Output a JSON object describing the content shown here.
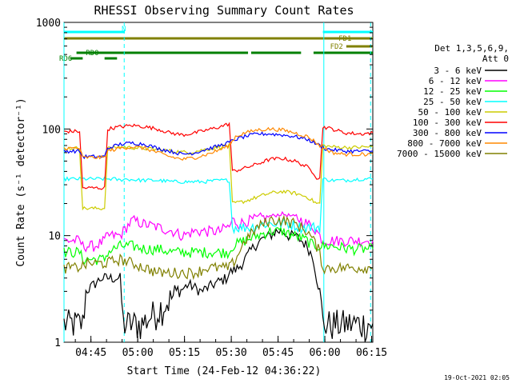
{
  "chart_data": {
    "type": "line",
    "title": "RHESSI Observing Summary Count Rates",
    "xlabel": "Start Time (24-Feb-12 04:36:22)",
    "ylabel": "Count Rate (s⁻¹ detector⁻¹)",
    "y_scale": "log",
    "ylim": [
      1,
      1000
    ],
    "xlim_minutes": [
      0,
      99
    ],
    "x_ticks": [
      {
        "label": "04:45",
        "minute": 8.63
      },
      {
        "label": "05:00",
        "minute": 23.63
      },
      {
        "label": "05:15",
        "minute": 38.63
      },
      {
        "label": "05:30",
        "minute": 53.63
      },
      {
        "label": "05:45",
        "minute": 68.63
      },
      {
        "label": "06:00",
        "minute": 83.63
      },
      {
        "label": "06:15",
        "minute": 98.63
      }
    ],
    "y_ticks": [
      {
        "label": "1",
        "value": 1
      },
      {
        "label": "10",
        "value": 10
      },
      {
        "label": "100",
        "value": 100
      },
      {
        "label": "1000",
        "value": 1000
      }
    ],
    "legend_header": [
      "Det 1,3,5,6,9,",
      "Att 0"
    ],
    "legend_position": "right",
    "grid": false,
    "series": [
      {
        "name": "3 - 6 keV",
        "color": "#000000",
        "x": [
          0,
          6,
          7,
          12,
          18,
          19,
          25,
          30,
          37,
          40,
          44,
          48,
          52,
          53,
          56,
          58,
          61,
          63,
          66,
          68,
          70,
          72,
          74,
          76,
          78,
          80,
          81,
          82,
          83,
          86,
          92,
          97,
          99
        ],
        "y": [
          1.5,
          1.5,
          3,
          4,
          4,
          1.5,
          1.5,
          2,
          3,
          3.5,
          3,
          3.5,
          4,
          4.5,
          5,
          6,
          8,
          9,
          10,
          11,
          11,
          10,
          10,
          9,
          8,
          6,
          4,
          3,
          1.5,
          1.5,
          1.5,
          1.5,
          1.5
        ]
      },
      {
        "name": "6 - 12 keV",
        "color": "#ff00ff",
        "x": [
          0,
          5,
          6,
          10,
          13,
          14,
          18,
          20,
          22,
          25,
          30,
          35,
          38,
          42,
          46,
          50,
          52,
          53,
          54,
          56,
          60,
          65,
          70,
          74,
          78,
          80,
          81,
          82,
          83,
          86,
          92,
          97,
          99
        ],
        "y": [
          9,
          9,
          8,
          8,
          9,
          10,
          10,
          12,
          14,
          13,
          12,
          11,
          10,
          11,
          11,
          11,
          12,
          12,
          14,
          13,
          14,
          15,
          16,
          15,
          13,
          12,
          11,
          10,
          9,
          9,
          9,
          9,
          9
        ]
      },
      {
        "name": "12 - 25 keV",
        "color": "#00ff00",
        "x": [
          0,
          5,
          6,
          13,
          14,
          18,
          22,
          26,
          30,
          35,
          40,
          45,
          50,
          53,
          54,
          58,
          62,
          66,
          70,
          74,
          78,
          80,
          83,
          86,
          92,
          97,
          99
        ],
        "y": [
          7,
          7,
          6,
          6,
          7,
          8,
          8,
          7.5,
          7.5,
          7,
          7,
          7,
          7,
          7,
          8,
          9,
          10,
          11,
          11,
          10,
          9,
          8,
          8,
          8,
          7.5,
          7.5,
          7.5
        ]
      },
      {
        "name": "25 - 50 keV",
        "color": "#00ffff",
        "x": [
          0,
          5,
          6,
          10,
          12,
          16,
          18,
          19,
          25,
          30,
          35,
          40,
          45,
          50,
          52,
          53,
          54,
          56,
          60,
          65,
          68,
          72,
          76,
          80,
          81,
          82,
          83,
          86,
          90,
          95,
          99
        ],
        "y": [
          34,
          34,
          34,
          34,
          34,
          34,
          33,
          34,
          33,
          33,
          32,
          32,
          32,
          33,
          33,
          33,
          12,
          12,
          12,
          13,
          13,
          13,
          12,
          12,
          12,
          12,
          34,
          33,
          33,
          34,
          34
        ]
      },
      {
        "name": "50 - 100 keV",
        "color": "#cccc00",
        "x": [
          0,
          5,
          6,
          13,
          14,
          18,
          25,
          30,
          35,
          40,
          45,
          50,
          53,
          54,
          58,
          62,
          66,
          70,
          74,
          78,
          80,
          81,
          82,
          83,
          86,
          92,
          97,
          99
        ],
        "y": [
          66,
          66,
          18,
          18,
          66,
          68,
          66,
          64,
          62,
          60,
          64,
          68,
          70,
          20,
          21,
          23,
          25,
          26,
          25,
          23,
          21,
          20,
          20,
          70,
          68,
          67,
          68,
          68
        ]
      },
      {
        "name": "100 - 300 keV",
        "color": "#ff0000",
        "x": [
          0,
          5,
          6,
          13,
          14,
          18,
          22,
          26,
          30,
          34,
          38,
          42,
          46,
          50,
          53,
          54,
          58,
          62,
          66,
          70,
          74,
          78,
          80,
          81,
          82,
          83,
          86,
          90,
          95,
          99
        ],
        "y": [
          95,
          95,
          28,
          28,
          100,
          105,
          108,
          105,
          100,
          92,
          88,
          92,
          98,
          105,
          112,
          40,
          43,
          47,
          52,
          53,
          50,
          44,
          39,
          35,
          35,
          105,
          100,
          92,
          90,
          92
        ]
      },
      {
        "name": "300 - 800 keV",
        "color": "#0000ff",
        "x": [
          0,
          5,
          6,
          13,
          14,
          18,
          22,
          26,
          30,
          34,
          38,
          42,
          46,
          50,
          53,
          55,
          58,
          62,
          66,
          70,
          74,
          78,
          80,
          82,
          84,
          86,
          90,
          95,
          99
        ],
        "y": [
          62,
          62,
          55,
          55,
          66,
          72,
          74,
          72,
          66,
          62,
          58,
          60,
          65,
          70,
          75,
          80,
          85,
          90,
          90,
          88,
          85,
          80,
          75,
          70,
          65,
          64,
          62,
          62,
          62
        ]
      },
      {
        "name": "800 - 7000 keV",
        "color": "#ff8800",
        "x": [
          0,
          5,
          6,
          13,
          14,
          18,
          22,
          26,
          30,
          34,
          38,
          42,
          46,
          50,
          53,
          55,
          58,
          62,
          66,
          70,
          74,
          78,
          80,
          82,
          84,
          86,
          90,
          95,
          99
        ],
        "y": [
          66,
          66,
          54,
          54,
          62,
          66,
          68,
          66,
          60,
          55,
          52,
          54,
          58,
          64,
          70,
          85,
          92,
          98,
          100,
          98,
          92,
          85,
          78,
          70,
          65,
          60,
          58,
          58,
          58
        ]
      },
      {
        "name": "7000 - 15000 keV",
        "color": "#808000",
        "x": [
          0,
          4,
          8,
          13,
          18,
          22,
          26,
          30,
          34,
          38,
          42,
          46,
          50,
          53,
          55,
          58,
          62,
          66,
          70,
          74,
          78,
          80,
          82,
          83,
          86,
          92,
          97,
          99
        ],
        "y": [
          5,
          5,
          5.5,
          5.5,
          6,
          5.5,
          5,
          4.5,
          4.5,
          4.5,
          4.5,
          5,
          5,
          5,
          6,
          9,
          12,
          14,
          14,
          13,
          11,
          9,
          7,
          5,
          5,
          5,
          5,
          5
        ]
      }
    ],
    "bars": [
      {
        "label": "N",
        "color": "#00ffff",
        "segments": [
          [
            0,
            19.5
          ],
          [
            83,
            99
          ]
        ]
      },
      {
        "label": "FD1",
        "color": "#808000",
        "segments": [
          [
            0,
            99
          ]
        ]
      },
      {
        "label": "FD2",
        "color": "#808000",
        "segments": [
          [
            90.5,
            99
          ]
        ]
      },
      {
        "label": "RD0",
        "color": "#008000",
        "segments": [
          [
            4,
            59
          ],
          [
            60,
            76
          ],
          [
            80,
            99
          ]
        ]
      },
      {
        "label": "RD6",
        "color": "#008000",
        "segments": [
          [
            2,
            6
          ],
          [
            13,
            17
          ]
        ]
      }
    ],
    "vertical_lines_minutes": [
      0,
      19.3,
      83.3,
      98.3
    ]
  },
  "footer": {
    "timestamp": "19-Oct-2021 02:05"
  }
}
